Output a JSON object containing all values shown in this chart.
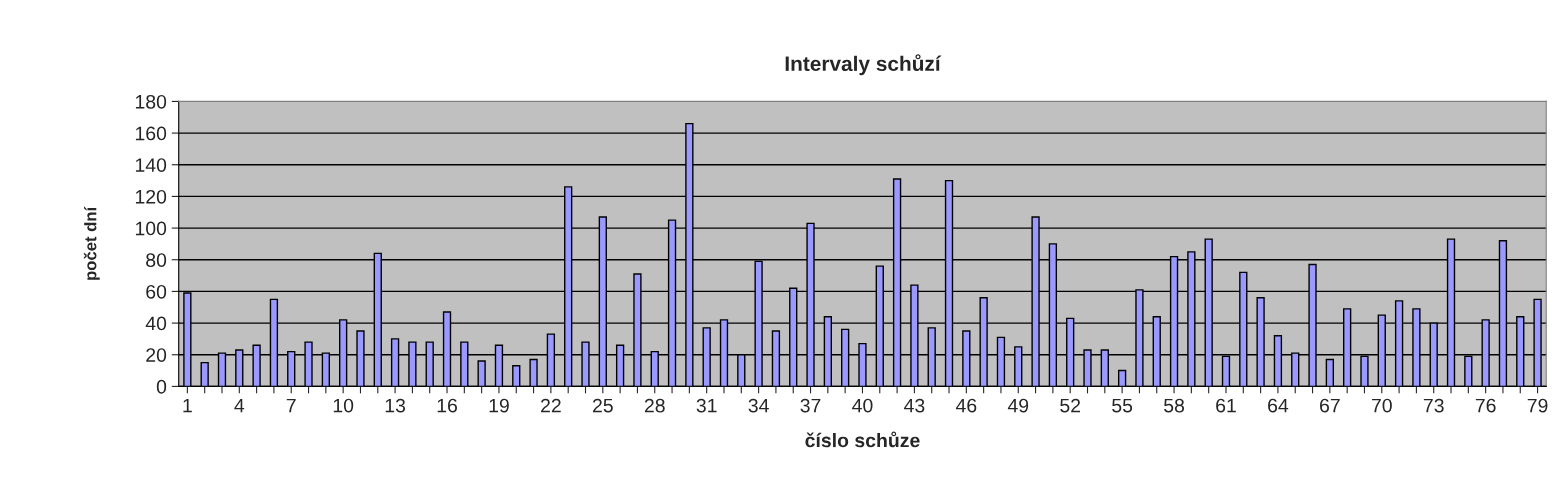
{
  "chart_data": {
    "type": "bar",
    "title": "Intervaly schůzí",
    "xlabel": "číslo schůze",
    "ylabel": "počet dní",
    "categories": [
      "1",
      null,
      null,
      "4",
      null,
      null,
      "7",
      null,
      null,
      "10",
      null,
      null,
      "13",
      null,
      null,
      "16",
      null,
      null,
      "19",
      null,
      null,
      "22",
      null,
      null,
      "25",
      null,
      null,
      "28",
      null,
      null,
      "31",
      null,
      null,
      "34",
      null,
      null,
      "37",
      null,
      null,
      "40",
      null,
      null,
      "43",
      null,
      null,
      "46",
      null,
      null,
      "49",
      null,
      null,
      "52",
      null,
      null,
      "55",
      null,
      null,
      "58",
      null,
      null,
      "61",
      null,
      null,
      "64",
      null,
      null,
      "67",
      null,
      null,
      "70",
      null,
      null,
      "73",
      null,
      null,
      "76",
      null,
      null,
      "79"
    ],
    "values": [
      59,
      15,
      21,
      23,
      26,
      55,
      22,
      28,
      21,
      42,
      35,
      84,
      30,
      28,
      28,
      47,
      28,
      16,
      26,
      13,
      17,
      33,
      126,
      28,
      107,
      26,
      71,
      22,
      105,
      166,
      37,
      42,
      20,
      79,
      35,
      62,
      103,
      44,
      36,
      27,
      76,
      131,
      64,
      37,
      130,
      35,
      56,
      31,
      25,
      107,
      90,
      43,
      23,
      23,
      10,
      61,
      44,
      82,
      85,
      93,
      19,
      72,
      56,
      32,
      21,
      77,
      17,
      49,
      19,
      45,
      54,
      49,
      40,
      93,
      19,
      42,
      92,
      44,
      55
    ],
    "color": "#9999ff",
    "ylim": [
      0,
      180
    ],
    "yticks": [
      0,
      20,
      40,
      60,
      80,
      100,
      120,
      140,
      160,
      180
    ],
    "grid": "y",
    "legend": false
  }
}
